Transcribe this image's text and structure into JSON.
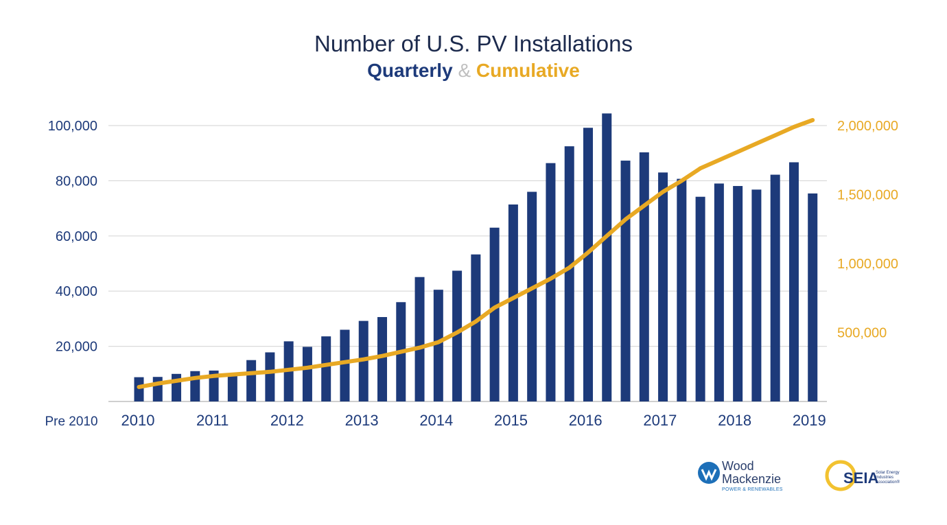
{
  "header": {
    "title": "Number of U.S. PV Installations",
    "subtitle_part1": "Quarterly",
    "subtitle_amp": "&",
    "subtitle_part2": "Cumulative"
  },
  "colors": {
    "bars": "#1d3a7a",
    "line": "#e8a924",
    "grid": "#d9d9d9",
    "axis_left": "#1d3a7a",
    "axis_right": "#e8a924"
  },
  "logos": {
    "woodmac_line1": "Wood",
    "woodmac_line2": "Mackenzie",
    "woodmac_sub": "POWER & RENEWABLES",
    "seia": "SEIA",
    "seia_sub": "Solar Energy Industries Association®"
  },
  "chart_data": {
    "type": "bar",
    "title": "Number of U.S. PV Installations",
    "subtitle": "Quarterly & Cumulative",
    "x_start_label": "Pre 2010",
    "year_labels": [
      "2010",
      "2011",
      "2012",
      "2013",
      "2014",
      "2015",
      "2016",
      "2017",
      "2018",
      "2019"
    ],
    "left_ticks": [
      "100,000",
      "80,000",
      "60,000",
      "40,000",
      "20,000"
    ],
    "left_tick_values": [
      100000,
      80000,
      60000,
      40000,
      20000
    ],
    "right_ticks": [
      "2,000,000",
      "1,500,000",
      "1,000,000",
      "500,000"
    ],
    "right_tick_values": [
      2000000,
      1500000,
      1000000,
      500000
    ],
    "ylim_left": [
      0,
      100000
    ],
    "ylim_right": [
      0,
      2000000
    ],
    "grid": true,
    "series": [
      {
        "type": "bar",
        "axis": "left",
        "values": [
          8800,
          8900,
          10000,
          11000,
          11200,
          9400,
          15000,
          17800,
          21800,
          19800,
          23600,
          26000,
          29200,
          30600,
          36000,
          45100,
          40500,
          47400,
          53300,
          63000,
          71400,
          76000,
          86400,
          92500,
          99200,
          104400,
          87300,
          90300,
          83000,
          80700,
          74200,
          79000,
          78100,
          76800,
          82200,
          86700,
          75400
        ]
      },
      {
        "type": "line",
        "axis": "right",
        "values": [
          105000,
          130000,
          150000,
          170000,
          185000,
          195000,
          205000,
          215000,
          230000,
          245000,
          265000,
          285000,
          305000,
          330000,
          360000,
          390000,
          430000,
          500000,
          580000,
          680000,
          750000,
          820000,
          890000,
          970000,
          1080000,
          1200000,
          1320000,
          1420000,
          1520000,
          1600000,
          1690000,
          1750000,
          1810000,
          1870000,
          1930000,
          1990000,
          2040000
        ]
      }
    ]
  }
}
